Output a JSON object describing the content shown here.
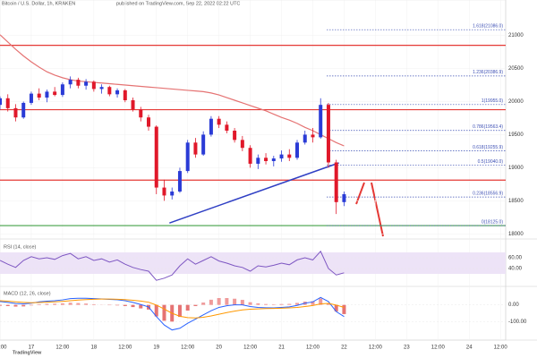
{
  "chart_data": [
    {
      "type": "candlestick",
      "title": "Bitcoin / U.S. Dollar, 1h, KRAKEN",
      "subtitle": "published on TradingView.com, Sep 22, 2022 02:22 UTC",
      "footer": "TradingView",
      "x": [
        0,
        3,
        6,
        9,
        12,
        15,
        18,
        21,
        24,
        27,
        30,
        33,
        36,
        39,
        42,
        45,
        48,
        51,
        54,
        57,
        60,
        63,
        66,
        69,
        72,
        75,
        78,
        81,
        84,
        87,
        90,
        93,
        96,
        99,
        102,
        105,
        108,
        111,
        114,
        117,
        120,
        123,
        126,
        129,
        132
      ],
      "candles": [
        [
          19950,
          20080,
          19880,
          20050
        ],
        [
          20050,
          20110,
          19850,
          19900
        ],
        [
          19900,
          19960,
          19700,
          19760
        ],
        [
          19760,
          20000,
          19740,
          19980
        ],
        [
          19980,
          20150,
          19950,
          20120
        ],
        [
          20120,
          20200,
          20020,
          20060
        ],
        [
          20060,
          20180,
          19990,
          20150
        ],
        [
          20150,
          20220,
          20080,
          20100
        ],
        [
          20100,
          20290,
          20070,
          20260
        ],
        [
          20260,
          20380,
          20200,
          20330
        ],
        [
          20330,
          20360,
          20200,
          20240
        ],
        [
          20240,
          20340,
          20180,
          20300
        ],
        [
          20300,
          20320,
          20150,
          20190
        ],
        [
          20190,
          20260,
          20120,
          20220
        ],
        [
          20220,
          20240,
          20080,
          20110
        ],
        [
          20110,
          20200,
          20060,
          20170
        ],
        [
          20170,
          20190,
          19990,
          20020
        ],
        [
          20020,
          20060,
          19850,
          19880
        ],
        [
          19880,
          19920,
          19700,
          19760
        ],
        [
          19760,
          19800,
          19560,
          19620
        ],
        [
          19620,
          19640,
          18600,
          18700
        ],
        [
          18700,
          18820,
          18500,
          18580
        ],
        [
          18580,
          18700,
          18520,
          18640
        ],
        [
          18640,
          19000,
          18620,
          18950
        ],
        [
          18950,
          19420,
          18920,
          19380
        ],
        [
          19380,
          19450,
          19150,
          19200
        ],
        [
          19200,
          19550,
          19180,
          19500
        ],
        [
          19500,
          19780,
          19470,
          19740
        ],
        [
          19740,
          19780,
          19600,
          19650
        ],
        [
          19650,
          19700,
          19520,
          19560
        ],
        [
          19560,
          19600,
          19380,
          19420
        ],
        [
          19420,
          19480,
          19250,
          19300
        ],
        [
          19300,
          19340,
          19000,
          19060
        ],
        [
          19060,
          19200,
          18980,
          19150
        ],
        [
          19150,
          19220,
          19050,
          19100
        ],
        [
          19100,
          19180,
          19020,
          19140
        ],
        [
          19140,
          19260,
          19090,
          19200
        ],
        [
          19200,
          19280,
          19100,
          19150
        ],
        [
          19150,
          19420,
          19120,
          19380
        ],
        [
          19380,
          19560,
          19350,
          19500
        ],
        [
          19500,
          19600,
          19380,
          19460
        ],
        [
          19460,
          20050,
          19440,
          19950
        ],
        [
          19950,
          19980,
          19000,
          19080
        ],
        [
          19080,
          19120,
          18300,
          18480
        ],
        [
          18480,
          18640,
          18420,
          18600
        ]
      ],
      "up_color": "#2a3bd6",
      "down_color": "#e0182a",
      "series": [
        {
          "color": "#e57373",
          "values": [
            21010,
            20900,
            20790,
            20690,
            20600,
            20520,
            20450,
            20400,
            20360,
            20330,
            20310,
            20300,
            20290,
            20280,
            20270,
            20260,
            20250,
            20240,
            20230,
            20220,
            20210,
            20200,
            20190,
            20180,
            20170,
            20160,
            20150,
            20130,
            20100,
            20060,
            20020,
            19980,
            19940,
            19900,
            19860,
            19810,
            19760,
            19720,
            19670,
            19610,
            19560,
            19500,
            19440,
            19380,
            19330
          ]
        }
      ],
      "levels": [
        {
          "value": 20850,
          "color": "#e53935"
        },
        {
          "value": 19877,
          "color": "#e53935"
        },
        {
          "value": 18813,
          "color": "#e53935"
        },
        {
          "value": 18125,
          "color": "#43a047"
        }
      ],
      "trendline": {
        "x": [
          65,
          130
        ],
        "y": [
          18164,
          19073
        ],
        "color": "#2f3fc4"
      },
      "fib_levels": [
        {
          "value": 21086.0,
          "label": "1.618(21086.0)"
        },
        {
          "value": 20386.9,
          "label": "1.236(20386.9)"
        },
        {
          "value": 19955.0,
          "label": "1(19955.0)"
        },
        {
          "value": 19563.4,
          "label": "0.786(19563.4)"
        },
        {
          "value": 19255.9,
          "label": "0.618(19255.9)"
        },
        {
          "value": 19040.0,
          "label": "0.5(19040.0)"
        },
        {
          "value": 18556.9,
          "label": "0.236(18556.9)"
        },
        {
          "value": 18125.0,
          "label": "0(18125.0)"
        }
      ],
      "fib_color": "#3f51b5",
      "xlim": [
        0,
        194
      ],
      "xticks": [
        {
          "value": 0,
          "label": "12:00"
        },
        {
          "value": 12,
          "label": "17"
        },
        {
          "value": 24,
          "label": "12:00"
        },
        {
          "value": 36,
          "label": "18"
        },
        {
          "value": 48,
          "label": "12:00"
        },
        {
          "value": 60,
          "label": "19"
        },
        {
          "value": 72,
          "label": "12:00"
        },
        {
          "value": 84,
          "label": "20"
        },
        {
          "value": 96,
          "label": "12:00"
        },
        {
          "value": 108,
          "label": "21"
        },
        {
          "value": 120,
          "label": "12:00"
        },
        {
          "value": 132,
          "label": "22"
        },
        {
          "value": 144,
          "label": "12:00"
        },
        {
          "value": 156,
          "label": "23"
        },
        {
          "value": 168,
          "label": "12:00"
        },
        {
          "value": 180,
          "label": "24"
        },
        {
          "value": 192,
          "label": "12:00"
        }
      ],
      "ylim": [
        17950,
        21400
      ],
      "yticks": [
        18000,
        18500,
        19000,
        19500,
        20000,
        20500,
        21000
      ],
      "grid": true
    },
    {
      "type": "line",
      "title": "RSI (14, close)",
      "series": [
        {
          "color": "#7e57c2",
          "values": [
            55,
            48,
            42,
            55,
            62,
            58,
            60,
            57,
            64,
            68,
            58,
            62,
            55,
            58,
            52,
            56,
            48,
            42,
            38,
            35,
            18,
            22,
            28,
            45,
            58,
            48,
            55,
            62,
            54,
            50,
            45,
            42,
            35,
            45,
            43,
            46,
            50,
            47,
            56,
            60,
            56,
            72,
            40,
            28,
            32
          ]
        }
      ],
      "band": [
        30,
        70
      ],
      "band_color": "#ede3f7",
      "ylim": [
        10,
        90
      ],
      "yticks": [
        {
          "value": 40,
          "label": "40.00"
        },
        {
          "value": 60,
          "label": "60.00"
        }
      ]
    },
    {
      "type": "macd",
      "title": "MACD (12, 26, close)",
      "histogram": [
        -5,
        -7,
        -10,
        -9,
        -3,
        4,
        6,
        7,
        9,
        13,
        11,
        8,
        4,
        1,
        -2,
        -3,
        -7,
        -13,
        -21,
        -28,
        -69,
        -95,
        -100,
        -72,
        -34,
        -7,
        14,
        31,
        41,
        41,
        37,
        30,
        16,
        9,
        5,
        3,
        5,
        6,
        12,
        20,
        22,
        39,
        11,
        -39,
        -55
      ],
      "pos_color": "#ef9a9a",
      "neg_color": "#e57373",
      "series": [
        {
          "color": "#2962ff",
          "values": [
            20,
            15,
            8,
            6,
            10,
            18,
            22,
            25,
            30,
            38,
            40,
            40,
            38,
            36,
            33,
            31,
            25,
            15,
            2,
            -12,
            -70,
            -120,
            -150,
            -140,
            -110,
            -85,
            -60,
            -35,
            -15,
            -5,
            0,
            0,
            -10,
            -15,
            -17,
            -18,
            -15,
            -12,
            -3,
            10,
            18,
            45,
            20,
            -40,
            -70
          ]
        },
        {
          "color": "#ff9800",
          "values": [
            25,
            22,
            18,
            15,
            13,
            14,
            16,
            18,
            21,
            25,
            29,
            32,
            34,
            35,
            35,
            34,
            32,
            28,
            23,
            16,
            -1,
            -25,
            -50,
            -68,
            -76,
            -78,
            -74,
            -66,
            -56,
            -46,
            -37,
            -30,
            -26,
            -24,
            -22,
            -21,
            -20,
            -18,
            -15,
            -10,
            -4,
            6,
            9,
            -1,
            -15
          ]
        }
      ],
      "ylim": [
        -200,
        100
      ],
      "yticks": [
        {
          "value": -100,
          "label": "-100.00"
        },
        {
          "value": 0,
          "label": "0.00"
        }
      ]
    }
  ]
}
